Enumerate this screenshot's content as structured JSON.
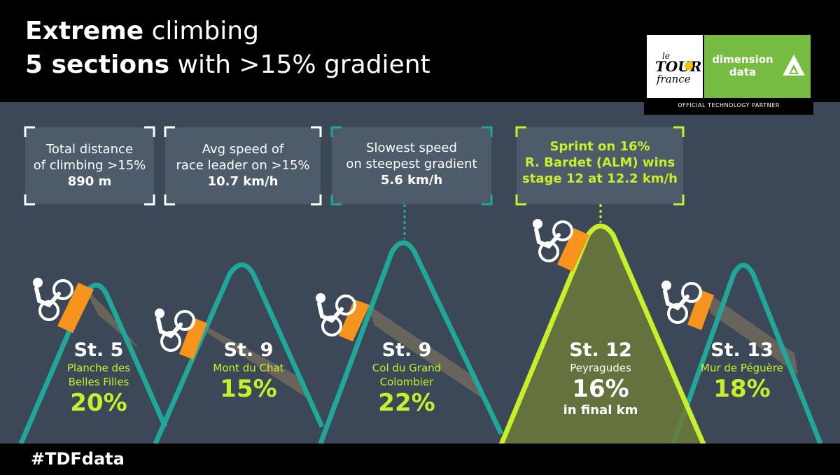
{
  "title": {
    "line1_bold": "Extreme",
    "line1_rest": " climbing",
    "line2_bold": "5 sections",
    "line2_rest": " with >15% gradient"
  },
  "logo": {
    "tour_text": "le Tour de France",
    "partner_name": "dimension data",
    "caption": "OFFICIAL TECHNOLOGY PARTNER"
  },
  "stats": [
    {
      "line1": "Total distance",
      "line2": "of climbing >15%",
      "value": "890 m"
    },
    {
      "line1": "Avg speed of",
      "line2": "race leader on >15%",
      "value": "10.7 km/h"
    },
    {
      "line1": "Slowest speed",
      "line2": "on steepest gradient",
      "value": "5.6 km/h"
    },
    {
      "line1": "Sprint on 16%",
      "line2": "R. Bardet (ALM) wins",
      "value": "stage 12 at 12.2 km/h"
    }
  ],
  "mountains": [
    {
      "stage": "St. 5",
      "name1": "Planche des",
      "name2": "Belles Filles",
      "gradient": "20%"
    },
    {
      "stage": "St. 9",
      "name1": "Mont du Chat",
      "gradient": "15%"
    },
    {
      "stage": "St. 9",
      "name1": "Col du Grand",
      "name2": "Colombier",
      "gradient": "22%"
    },
    {
      "stage": "St. 12",
      "name1": "Peyragudes",
      "gradient": "16%",
      "note": "in final km"
    },
    {
      "stage": "St. 13",
      "name1": "Mur de Péguère",
      "gradient": "18%"
    }
  ],
  "hashtag": "#TDFdata",
  "colors": {
    "background": "#3c4858",
    "teal": "#1fa89a",
    "lime": "#c8f02a",
    "orange": "#f7941d",
    "brand_green": "#76bc43"
  }
}
